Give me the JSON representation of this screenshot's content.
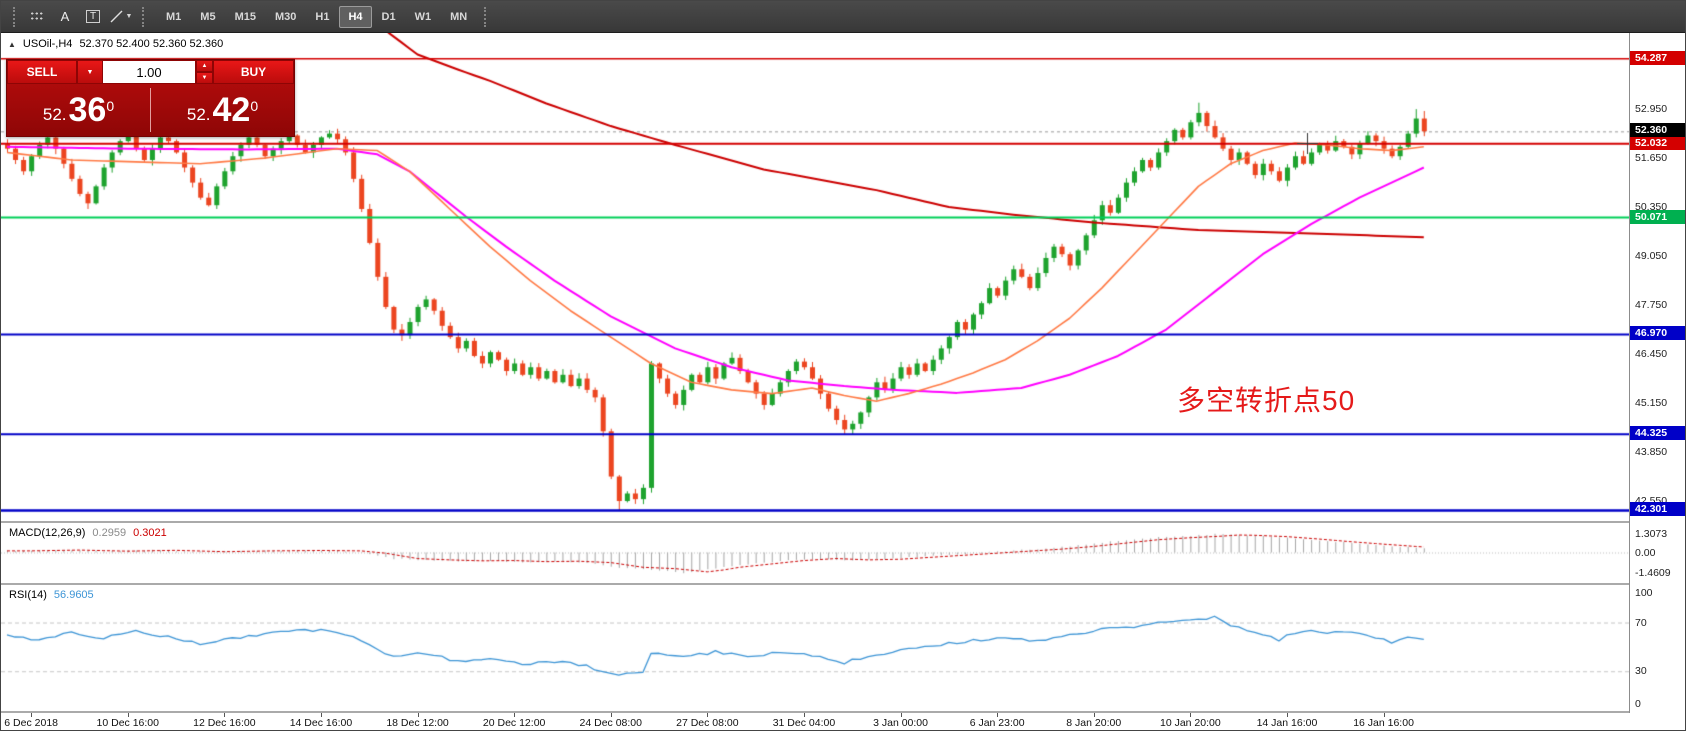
{
  "toolbar": {
    "tools": [
      {
        "name": "chart-grid-tool",
        "style": "dots"
      },
      {
        "name": "text-tool",
        "style": "glyph",
        "glyph": "A"
      },
      {
        "name": "text-label-tool",
        "style": "boxed",
        "glyph": "T"
      },
      {
        "name": "shapes-tool",
        "style": "shapes"
      }
    ],
    "timeframes": [
      "M1",
      "M5",
      "M15",
      "M30",
      "H1",
      "H4",
      "D1",
      "W1",
      "MN"
    ],
    "active_timeframe": "H4"
  },
  "icons": {
    "caret_down": "▼",
    "spin_up": "▲",
    "spin_down": "▼",
    "collapse": "▲"
  },
  "chart_header": {
    "symbol": "USOil-,H4",
    "ohlc": "52.370 52.400 52.360 52.360"
  },
  "trade_panel": {
    "sell_label": "SELL",
    "buy_label": "BUY",
    "volume": "1.00",
    "sell_price": {
      "prefix": "52.",
      "big": "36",
      "sup": "0"
    },
    "buy_price": {
      "prefix": "52.",
      "big": "42",
      "sup": "0"
    }
  },
  "annotation": {
    "text": "多空转折点50",
    "color": "#e51a1a"
  },
  "colors": {
    "candle_up": "#1ea32e",
    "candle_down": "#ec4520",
    "macd_hist": "#a6a6a6",
    "macd_signal": "#cc0000",
    "rsi_line": "#3d95d6"
  },
  "chart_data": [
    {
      "type": "candlestick",
      "symbol": "USOil-",
      "timeframe": "H4",
      "x_labels": [
        "6 Dec 2018",
        "10 Dec 16:00",
        "12 Dec 16:00",
        "14 Dec 16:00",
        "18 Dec 12:00",
        "20 Dec 12:00",
        "24 Dec 08:00",
        "27 Dec 08:00",
        "31 Dec 04:00",
        "3 Jan 00:00",
        "6 Jan 23:00",
        "8 Jan 20:00",
        "10 Jan 20:00",
        "14 Jan 16:00",
        "16 Jan 16:00"
      ],
      "y_range": [
        42.02,
        54.97
      ],
      "y_ticks": [
        52.95,
        51.65,
        50.35,
        49.05,
        47.75,
        46.45,
        45.15,
        43.85,
        42.55
      ],
      "closes": [
        51.9,
        51.6,
        51.3,
        51.7,
        52.0,
        52.2,
        51.9,
        51.5,
        51.1,
        50.7,
        50.45,
        50.9,
        51.4,
        51.8,
        52.1,
        52.25,
        51.9,
        51.6,
        51.9,
        52.2,
        52.1,
        51.8,
        51.4,
        51.0,
        50.6,
        50.4,
        50.9,
        51.3,
        51.7,
        52.0,
        52.2,
        52.0,
        51.7,
        51.9,
        52.1,
        52.25,
        52.0,
        51.8,
        52.0,
        52.2,
        52.3,
        52.15,
        51.8,
        51.1,
        50.3,
        49.4,
        48.5,
        47.7,
        47.1,
        46.95,
        47.3,
        47.7,
        47.9,
        47.6,
        47.2,
        46.9,
        46.6,
        46.8,
        46.4,
        46.2,
        46.5,
        46.3,
        46.0,
        46.2,
        45.9,
        46.1,
        45.8,
        46.0,
        45.7,
        45.9,
        45.6,
        45.8,
        45.5,
        45.3,
        44.4,
        43.2,
        42.55,
        42.75,
        42.6,
        42.9,
        46.2,
        45.8,
        45.4,
        45.1,
        45.5,
        45.9,
        45.7,
        46.1,
        45.8,
        46.2,
        46.35,
        46.0,
        45.7,
        45.4,
        45.1,
        45.4,
        45.7,
        46.0,
        46.25,
        46.1,
        45.8,
        45.4,
        45.0,
        44.7,
        44.45,
        44.6,
        44.9,
        45.3,
        45.7,
        45.5,
        45.8,
        46.1,
        45.9,
        46.2,
        46.0,
        46.3,
        46.6,
        46.9,
        47.3,
        47.1,
        47.5,
        47.8,
        48.2,
        48.0,
        48.4,
        48.7,
        48.5,
        48.2,
        48.6,
        49.0,
        49.3,
        49.1,
        48.8,
        49.2,
        49.6,
        50.0,
        50.4,
        50.2,
        50.6,
        51.0,
        51.3,
        51.6,
        51.4,
        51.8,
        52.1,
        52.4,
        52.2,
        52.6,
        52.85,
        52.5,
        52.2,
        51.9,
        51.6,
        51.8,
        51.5,
        51.2,
        51.5,
        51.3,
        51.05,
        51.4,
        51.7,
        51.5,
        51.8,
        52.0,
        51.85,
        52.1,
        51.95,
        51.75,
        52.05,
        52.25,
        52.1,
        51.9,
        51.7,
        51.95,
        52.3,
        52.7,
        52.36
      ],
      "wick_overrides": {
        "10": {
          "low": 50.3
        },
        "49": {
          "low": 46.8
        },
        "76": {
          "low": 42.3
        },
        "104": {
          "low": 44.33
        },
        "148": {
          "high": 53.12
        },
        "175": {
          "high": 52.95
        },
        "176": {
          "high": 52.9
        }
      },
      "current_price": {
        "value": 52.36,
        "label": "52.360",
        "box_color": "#000000",
        "line_color": "#9a9a9a"
      },
      "hlines": [
        {
          "price": 54.287,
          "label": "54.287",
          "color": "#d40000",
          "width": 1.4
        },
        {
          "price": 52.032,
          "label": "52.032",
          "color": "#d40000",
          "width": 2
        },
        {
          "price": 50.071,
          "label": "50.071",
          "color": "#00b050",
          "line_color": "#00d058",
          "width": 2
        },
        {
          "price": 46.97,
          "label": "46.970",
          "color": "#0000c8",
          "width": 2
        },
        {
          "price": 44.325,
          "label": "44.325",
          "color": "#0000c8",
          "width": 2
        },
        {
          "price": 42.301,
          "label": "42.301",
          "color": "#0000c8",
          "width": 2.5
        }
      ],
      "ma_lines": [
        {
          "name": "ma-long",
          "color": "#cc0000",
          "width": 2,
          "anchors": [
            [
              46,
              55.2
            ],
            [
              51,
              54.4
            ],
            [
              56,
              54.0
            ],
            [
              60,
              53.7
            ],
            [
              67,
              53.1
            ],
            [
              75,
              52.5
            ],
            [
              83,
              52.0
            ],
            [
              94,
              51.35
            ],
            [
              108,
              50.8
            ],
            [
              117,
              50.35
            ],
            [
              125,
              50.15
            ],
            [
              135,
              49.94
            ],
            [
              148,
              49.74
            ],
            [
              162,
              49.65
            ],
            [
              176,
              49.55
            ]
          ]
        },
        {
          "name": "ma-mid",
          "color": "#ff00ff",
          "width": 2,
          "anchors": [
            [
              0,
              51.95
            ],
            [
              15,
              51.9
            ],
            [
              30,
              51.88
            ],
            [
              41,
              51.9
            ],
            [
              46,
              51.75
            ],
            [
              50,
              51.3
            ],
            [
              57,
              50.1
            ],
            [
              62,
              49.3
            ],
            [
              68,
              48.4
            ],
            [
              75,
              47.45
            ],
            [
              83,
              46.6
            ],
            [
              90,
              46.1
            ],
            [
              97,
              45.75
            ],
            [
              104,
              45.6
            ],
            [
              110,
              45.5
            ],
            [
              118,
              45.42
            ],
            [
              126,
              45.55
            ],
            [
              132,
              45.9
            ],
            [
              138,
              46.4
            ],
            [
              144,
              47.1
            ],
            [
              150,
              48.1
            ],
            [
              156,
              49.1
            ],
            [
              162,
              49.9
            ],
            [
              168,
              50.6
            ],
            [
              172,
              51.0
            ],
            [
              176,
              51.4
            ]
          ]
        },
        {
          "name": "ma-fast",
          "color": "#ff7a45",
          "width": 1.6,
          "anchors": [
            [
              0,
              51.8
            ],
            [
              8,
              51.6
            ],
            [
              16,
              51.55
            ],
            [
              24,
              51.5
            ],
            [
              32,
              51.65
            ],
            [
              41,
              51.9
            ],
            [
              46,
              51.85
            ],
            [
              50,
              51.3
            ],
            [
              55,
              50.3
            ],
            [
              60,
              49.3
            ],
            [
              65,
              48.4
            ],
            [
              70,
              47.6
            ],
            [
              75,
              46.9
            ],
            [
              80,
              46.2
            ],
            [
              85,
              45.7
            ],
            [
              90,
              45.5
            ],
            [
              95,
              45.4
            ],
            [
              100,
              45.55
            ],
            [
              104,
              45.35
            ],
            [
              108,
              45.2
            ],
            [
              112,
              45.4
            ],
            [
              116,
              45.65
            ],
            [
              120,
              45.95
            ],
            [
              124,
              46.3
            ],
            [
              128,
              46.8
            ],
            [
              132,
              47.4
            ],
            [
              136,
              48.2
            ],
            [
              140,
              49.1
            ],
            [
              144,
              50.0
            ],
            [
              148,
              50.9
            ],
            [
              152,
              51.5
            ],
            [
              156,
              51.85
            ],
            [
              160,
              52.05
            ],
            [
              164,
              52.0
            ],
            [
              168,
              51.9
            ],
            [
              172,
              51.85
            ],
            [
              176,
              51.95
            ]
          ]
        }
      ]
    },
    {
      "type": "macd-histogram",
      "label": "MACD(12,26,9)",
      "value_main": "0.2959",
      "value_signal": "0.3021",
      "y_ticks": [
        {
          "v": 1.3073,
          "label": "1.3073"
        },
        {
          "v": 0,
          "label": "0.00"
        },
        {
          "v": -1.4609,
          "label": "-1.4609"
        }
      ],
      "anchors": [
        [
          0,
          0.12
        ],
        [
          6,
          0.18
        ],
        [
          12,
          0.1
        ],
        [
          18,
          0.16
        ],
        [
          24,
          0.06
        ],
        [
          30,
          0.12
        ],
        [
          36,
          0.15
        ],
        [
          41,
          0.12
        ],
        [
          44,
          -0.05
        ],
        [
          48,
          -0.45
        ],
        [
          52,
          -0.55
        ],
        [
          56,
          -0.62
        ],
        [
          60,
          -0.6
        ],
        [
          64,
          -0.68
        ],
        [
          68,
          -0.65
        ],
        [
          72,
          -0.75
        ],
        [
          76,
          -1.1
        ],
        [
          80,
          -1.2
        ],
        [
          84,
          -1.44
        ],
        [
          86,
          -1.3
        ],
        [
          88,
          -1.1
        ],
        [
          92,
          -0.85
        ],
        [
          96,
          -0.6
        ],
        [
          100,
          -0.45
        ],
        [
          104,
          -0.55
        ],
        [
          108,
          -0.5
        ],
        [
          112,
          -0.35
        ],
        [
          116,
          -0.2
        ],
        [
          120,
          -0.05
        ],
        [
          124,
          0.1
        ],
        [
          128,
          0.25
        ],
        [
          132,
          0.45
        ],
        [
          136,
          0.7
        ],
        [
          140,
          0.95
        ],
        [
          144,
          1.1
        ],
        [
          148,
          1.22
        ],
        [
          150,
          1.3
        ],
        [
          152,
          1.28
        ],
        [
          156,
          1.18
        ],
        [
          160,
          1.0
        ],
        [
          164,
          0.8
        ],
        [
          168,
          0.62
        ],
        [
          172,
          0.45
        ],
        [
          176,
          0.3
        ]
      ]
    },
    {
      "type": "rsi-line",
      "label": "RSI(14)",
      "value": "56.9605",
      "levels": [
        {
          "v": 100,
          "label": "100"
        },
        {
          "v": 70,
          "label": "70",
          "dashed": true
        },
        {
          "v": 30,
          "label": "30",
          "dashed": true
        },
        {
          "v": 0,
          "label": "0"
        }
      ],
      "anchors": [
        [
          0,
          60
        ],
        [
          4,
          56
        ],
        [
          8,
          62
        ],
        [
          12,
          57
        ],
        [
          16,
          63
        ],
        [
          20,
          58
        ],
        [
          24,
          52
        ],
        [
          28,
          57
        ],
        [
          32,
          61
        ],
        [
          36,
          63
        ],
        [
          40,
          64
        ],
        [
          44,
          55
        ],
        [
          48,
          42
        ],
        [
          52,
          45
        ],
        [
          56,
          38
        ],
        [
          60,
          40
        ],
        [
          64,
          36
        ],
        [
          68,
          38
        ],
        [
          72,
          34
        ],
        [
          76,
          26
        ],
        [
          79,
          30
        ],
        [
          80,
          45
        ],
        [
          84,
          41
        ],
        [
          88,
          46
        ],
        [
          92,
          42
        ],
        [
          96,
          46
        ],
        [
          100,
          43
        ],
        [
          104,
          37
        ],
        [
          108,
          44
        ],
        [
          112,
          48
        ],
        [
          116,
          52
        ],
        [
          120,
          55
        ],
        [
          124,
          58
        ],
        [
          128,
          55
        ],
        [
          132,
          60
        ],
        [
          136,
          64
        ],
        [
          140,
          67
        ],
        [
          144,
          70
        ],
        [
          148,
          73
        ],
        [
          150,
          74
        ],
        [
          152,
          68
        ],
        [
          154,
          64
        ],
        [
          156,
          60
        ],
        [
          158,
          56
        ],
        [
          160,
          62
        ],
        [
          162,
          64
        ],
        [
          164,
          60
        ],
        [
          166,
          63
        ],
        [
          168,
          61
        ],
        [
          170,
          58
        ],
        [
          172,
          54
        ],
        [
          174,
          58
        ],
        [
          176,
          57
        ]
      ]
    }
  ]
}
